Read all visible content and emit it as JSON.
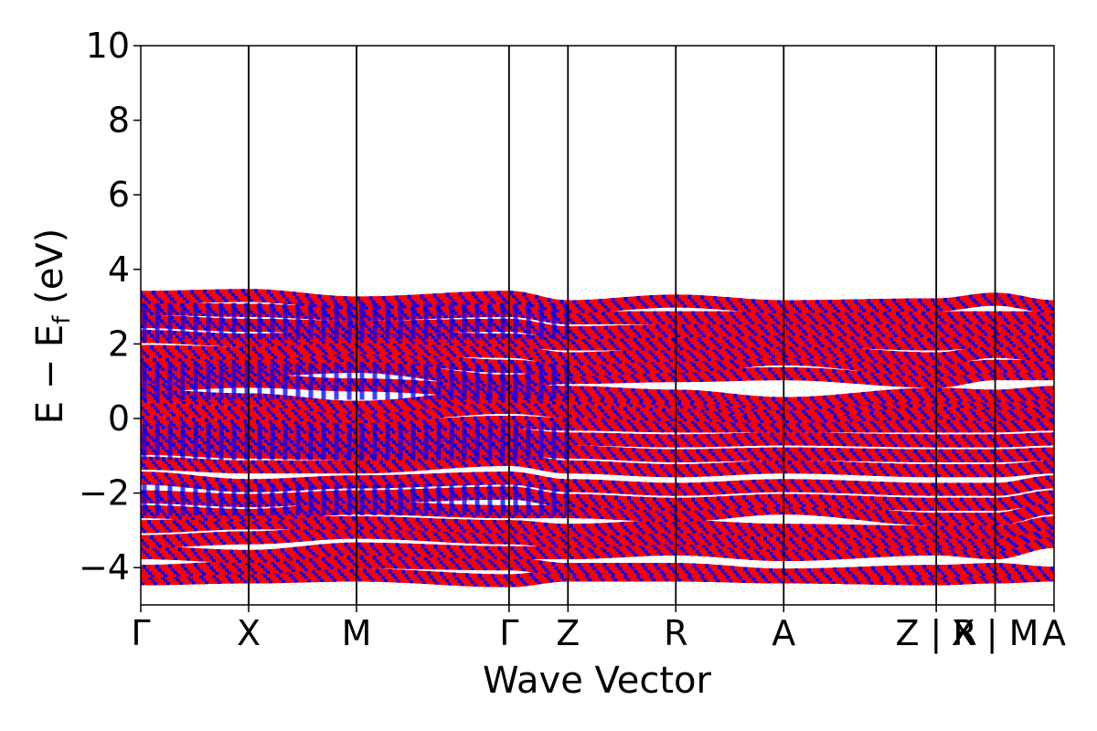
{
  "chart_data": {
    "type": "line",
    "title": "",
    "xlabel": "Wave Vector",
    "ylabel_parts": {
      "main": "E − E",
      "sub": "f",
      "unit": " (eV)"
    },
    "ylim": [
      -5,
      10
    ],
    "yticks": [
      10,
      8,
      6,
      4,
      2,
      0,
      -2,
      -4
    ],
    "ytick_labels": [
      "10",
      "8",
      "6",
      "4",
      "2",
      "0",
      "−2",
      "−4"
    ],
    "kpath": [
      {
        "label": "Γ",
        "x": 0.0
      },
      {
        "label": "X",
        "x": 0.5
      },
      {
        "label": "M",
        "x": 1.0
      },
      {
        "label": "Γ",
        "x": 1.707
      },
      {
        "label": "Z",
        "x": 1.98
      },
      {
        "label": "R",
        "x": 2.48
      },
      {
        "label": "A",
        "x": 2.98
      },
      {
        "label": "Z | R",
        "x": 3.687
      },
      {
        "label": "X | M",
        "x": 3.96
      },
      {
        "label": "A",
        "x": 4.233
      }
    ],
    "xlim": [
      0,
      4.233
    ],
    "grid": false,
    "legend": "none",
    "band_colors": [
      "#ff0000",
      "#0000ff"
    ],
    "bands": [
      {
        "name": "",
        "values": [
          -4.3,
          -4.25,
          -4.2,
          -4.35,
          -4.2,
          -4.2,
          -4.25,
          -4.3,
          -4.25,
          -4.2
        ]
      },
      {
        "name": "",
        "values": [
          -4.1,
          -4.0,
          -3.85,
          -3.9,
          -4.05,
          -4.05,
          -4.2,
          -4.1,
          -4.05,
          -4.15
        ]
      },
      {
        "name": "",
        "values": [
          -3.6,
          -3.7,
          -3.5,
          -3.6,
          -3.6,
          -3.5,
          -3.65,
          -3.5,
          -3.6,
          -3.3
        ]
      },
      {
        "name": "",
        "values": [
          -3.3,
          -3.2,
          -3.05,
          -3.2,
          -3.3,
          -3.2,
          -3.35,
          -3.3,
          -3.4,
          -3.0
        ]
      },
      {
        "name": "",
        "values": [
          -2.9,
          -2.8,
          -2.8,
          -2.9,
          -3.0,
          -2.9,
          -3.0,
          -3.05,
          -3.05,
          -2.8
        ]
      },
      {
        "name": "",
        "values": [
          -2.5,
          -2.6,
          -2.4,
          -2.5,
          -2.5,
          -2.6,
          -2.4,
          -2.7,
          -2.7,
          -2.4
        ]
      },
      {
        "name": "",
        "values": [
          -2.1,
          -2.2,
          -2.1,
          -2.0,
          -2.2,
          -2.3,
          -2.2,
          -2.3,
          -2.3,
          -2.1
        ]
      },
      {
        "name": "",
        "values": [
          -1.6,
          -1.8,
          -1.7,
          -1.6,
          -1.8,
          -1.9,
          -1.8,
          -1.9,
          -1.9,
          -1.7
        ]
      },
      {
        "name": "",
        "values": [
          -1.2,
          -1.3,
          -1.3,
          -1.1,
          -1.3,
          -1.4,
          -1.3,
          -1.4,
          -1.4,
          -1.3
        ]
      },
      {
        "name": "",
        "values": [
          -0.8,
          -0.9,
          -0.95,
          -0.8,
          -0.9,
          -1.0,
          -0.95,
          -1.0,
          -1.0,
          -0.95
        ]
      },
      {
        "name": "",
        "values": [
          -0.45,
          -0.55,
          -0.6,
          -0.45,
          -0.55,
          -0.6,
          -0.55,
          -0.6,
          -0.6,
          -0.55
        ]
      },
      {
        "name": "",
        "values": [
          -0.1,
          -0.2,
          -0.25,
          -0.1,
          -0.15,
          -0.2,
          -0.2,
          -0.2,
          -0.2,
          -0.15
        ]
      },
      {
        "name": "",
        "values": [
          0.25,
          0.15,
          0.05,
          0.3,
          0.2,
          0.1,
          0.05,
          0.15,
          0.1,
          0.2
        ]
      },
      {
        "name": "",
        "values": [
          0.6,
          0.5,
          0.3,
          0.6,
          0.55,
          0.45,
          0.15,
          0.5,
          0.4,
          0.5
        ]
      },
      {
        "name": "",
        "values": [
          0.9,
          1.0,
          0.9,
          0.75,
          0.7,
          0.6,
          0.4,
          0.65,
          0.6,
          0.7
        ]
      },
      {
        "name": "",
        "values": [
          1.1,
          1.3,
          1.4,
          1.0,
          1.1,
          1.15,
          1.2,
          1.0,
          1.2,
          1.2
        ]
      },
      {
        "name": "",
        "values": [
          1.45,
          1.5,
          1.7,
          1.4,
          1.3,
          1.4,
          1.6,
          1.3,
          1.4,
          1.4
        ]
      },
      {
        "name": "",
        "values": [
          1.8,
          1.75,
          1.9,
          1.8,
          1.6,
          1.7,
          1.8,
          1.6,
          1.8,
          1.7
        ]
      },
      {
        "name": "",
        "values": [
          2.2,
          2.1,
          2.2,
          2.1,
          2.0,
          2.0,
          2.1,
          2.0,
          2.1,
          2.05
        ]
      },
      {
        "name": "",
        "values": [
          2.6,
          2.5,
          2.45,
          2.5,
          2.3,
          2.35,
          2.4,
          2.35,
          2.4,
          2.4
        ]
      },
      {
        "name": "",
        "values": [
          2.95,
          2.9,
          2.8,
          2.9,
          2.7,
          2.7,
          2.7,
          2.7,
          2.7,
          2.7
        ]
      },
      {
        "name": "",
        "values": [
          3.25,
          3.3,
          3.1,
          3.25,
          3.0,
          3.15,
          3.0,
          3.05,
          3.2,
          3.0
        ]
      }
    ]
  }
}
